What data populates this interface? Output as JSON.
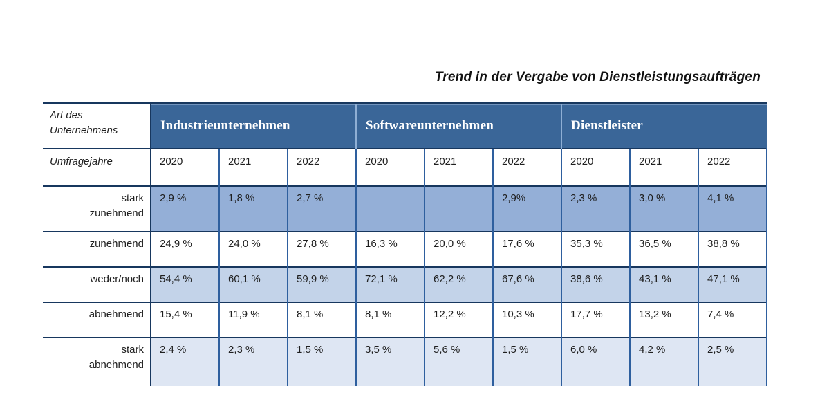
{
  "title": "Trend in der Vergabe von Dienstleistungsaufträgen",
  "table": {
    "corner_label": "Art des Unternehmens",
    "years_label": "Umfragejahre",
    "groups": [
      {
        "label": "Industrieunternehmen",
        "years": [
          "2020",
          "2021",
          "2022"
        ]
      },
      {
        "label": "Softwareunternehmen",
        "years": [
          "2020",
          "2021",
          "2022"
        ]
      },
      {
        "label": "Dienstleister",
        "years": [
          "2020",
          "2021",
          "2022"
        ]
      }
    ],
    "rows": [
      {
        "label": "stark zunehmend",
        "values": [
          "2,9 %",
          "1,8 %",
          "2,7 %",
          "",
          "",
          "2,9%",
          "2,3 %",
          "3,0 %",
          "4,1 %"
        ]
      },
      {
        "label": "zunehmend",
        "values": [
          "24,9 %",
          "24,0 %",
          "27,8 %",
          "16,3 %",
          "20,0 %",
          "17,6 %",
          "35,3 %",
          "36,5 %",
          "38,8 %"
        ]
      },
      {
        "label": "weder/noch",
        "values": [
          "54,4 %",
          "60,1 %",
          "59,9 %",
          "72,1 %",
          "62,2 %",
          "67,6 %",
          "38,6 %",
          "43,1 %",
          "47,1 %"
        ]
      },
      {
        "label": "abnehmend",
        "values": [
          "15,4 %",
          "11,9 %",
          "8,1 %",
          "8,1 %",
          "12,2 %",
          "10,3 %",
          "17,7 %",
          "13,2 %",
          "7,4 %"
        ]
      },
      {
        "label": "stark abnehmend",
        "values": [
          "2,4 %",
          "2,3 %",
          "1,5 %",
          "3,5 %",
          "5,6 %",
          "1,5 %",
          "6,0 %",
          "4,2 %",
          "2,5 %"
        ]
      }
    ],
    "colors": {
      "header_background": "#3A6698",
      "header_text": "#FFFFFF",
      "row_fill_strong": "#94AFD7",
      "row_fill_medium": "#C3D3E9",
      "row_fill_light": "#DEE6F3",
      "border_dark": "#17375E",
      "border_blue": "#2E5F9E"
    }
  }
}
